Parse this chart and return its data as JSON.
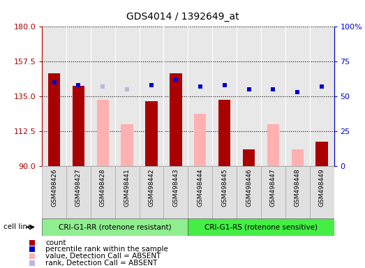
{
  "title": "GDS4014 / 1392649_at",
  "samples": [
    "GSM498426",
    "GSM498427",
    "GSM498428",
    "GSM498441",
    "GSM498442",
    "GSM498443",
    "GSM498444",
    "GSM498445",
    "GSM498446",
    "GSM498447",
    "GSM498448",
    "GSM498449"
  ],
  "group1_count": 6,
  "group1_label": "CRI-G1-RR (rotenone resistant)",
  "group2_label": "CRI-G1-RS (rotenone sensitive)",
  "group1_color": "#90ee90",
  "group2_color": "#44ee44",
  "ymin": 90,
  "ymax": 180,
  "yticks": [
    90,
    112.5,
    135,
    157.5,
    180
  ],
  "y2min": 0,
  "y2max": 100,
  "y2ticks": [
    0,
    25,
    50,
    75,
    100
  ],
  "y2ticklabels": [
    "0",
    "25",
    "50",
    "75",
    "100%"
  ],
  "count_color": "#aa0000",
  "rank_color": "#0000cc",
  "absent_value_color": "#ffb0b0",
  "absent_rank_color": "#b8b8e8",
  "bar_width": 0.5,
  "count_values": [
    150.0,
    142.0,
    null,
    null,
    132.0,
    150.0,
    null,
    133.0,
    101.0,
    null,
    null,
    106.0
  ],
  "absent_value_values": [
    null,
    null,
    133.0,
    117.0,
    null,
    null,
    124.0,
    null,
    null,
    117.0,
    101.0,
    null
  ],
  "rank_values": [
    60,
    58,
    null,
    null,
    58,
    62,
    57,
    58,
    55,
    55,
    53,
    57
  ],
  "absent_rank_values": [
    null,
    null,
    57,
    55,
    null,
    null,
    null,
    null,
    null,
    null,
    null,
    null
  ],
  "bg_color": "#e8e8e8",
  "grid_color": "#000000",
  "sep_color": "#ffffff",
  "white_bg": "#ffffff"
}
